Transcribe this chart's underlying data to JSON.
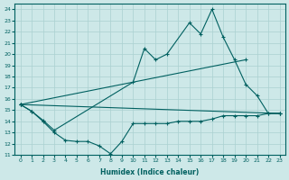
{
  "xlabel": "Humidex (Indice chaleur)",
  "xlim": [
    -0.5,
    23.5
  ],
  "ylim": [
    11,
    24.5
  ],
  "yticks": [
    11,
    12,
    13,
    14,
    15,
    16,
    17,
    18,
    19,
    20,
    21,
    22,
    23,
    24
  ],
  "xticks": [
    0,
    1,
    2,
    3,
    4,
    5,
    6,
    7,
    8,
    9,
    10,
    11,
    12,
    13,
    14,
    15,
    16,
    17,
    18,
    19,
    20,
    21,
    22,
    23
  ],
  "background_color": "#cde8e8",
  "grid_color": "#aad0d0",
  "line_color": "#006060",
  "lines": [
    {
      "x": [
        0,
        1,
        2,
        3,
        4,
        5,
        6,
        7,
        8,
        9,
        10,
        11,
        12,
        13,
        14,
        15,
        16,
        17,
        18,
        19,
        20,
        21,
        22,
        23
      ],
      "y": [
        15.5,
        14.9,
        14.0,
        13.0,
        12.3,
        12.2,
        12.2,
        11.8,
        11.1,
        12.2,
        13.8,
        13.8,
        13.8,
        13.8,
        14.0,
        14.0,
        14.0,
        14.2,
        14.5,
        14.5,
        14.5,
        14.5,
        14.7,
        14.7
      ]
    },
    {
      "x": [
        0,
        23
      ],
      "y": [
        15.5,
        14.7
      ]
    },
    {
      "x": [
        0,
        20
      ],
      "y": [
        15.5,
        19.5
      ]
    },
    {
      "x": [
        0,
        1,
        2,
        3,
        10,
        11,
        12,
        13,
        15,
        16,
        17,
        18,
        19,
        20,
        21,
        22,
        23
      ],
      "y": [
        15.5,
        14.9,
        14.1,
        13.2,
        17.5,
        20.5,
        19.5,
        20.0,
        22.8,
        21.8,
        24.0,
        21.5,
        19.5,
        17.3,
        16.3,
        14.7,
        14.7
      ]
    }
  ]
}
